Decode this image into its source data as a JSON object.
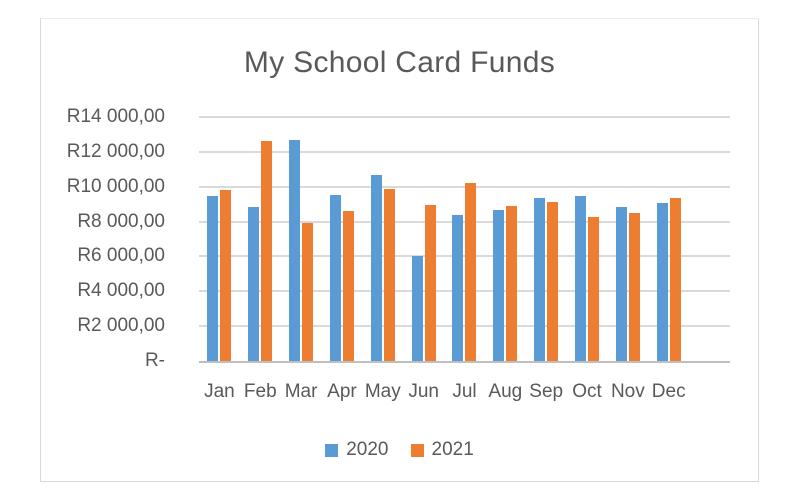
{
  "chart_data": {
    "type": "bar",
    "title": "My School Card Funds",
    "categories": [
      "Jan",
      "Feb",
      "Mar",
      "Apr",
      "May",
      "Jun",
      "Jul",
      "Aug",
      "Sep",
      "Oct",
      "Nov",
      "Dec"
    ],
    "series": [
      {
        "name": "2020",
        "color": "#5B9BD5",
        "values": [
          9450,
          8850,
          12700,
          9550,
          10650,
          6000,
          8400,
          8650,
          9350,
          9450,
          8850,
          9050
        ]
      },
      {
        "name": "2021",
        "color": "#ED7D31",
        "values": [
          9800,
          12650,
          7900,
          8600,
          9850,
          8950,
          10200,
          8900,
          9100,
          8250,
          8500,
          9350
        ]
      }
    ],
    "y_axis": {
      "min": 0,
      "max": 14000,
      "step": 2000,
      "tick_labels": [
        "R-",
        "R2 000,00",
        "R4 000,00",
        "R6 000,00",
        "R8 000,00",
        "R10 000,00",
        "R12 000,00",
        "R14 000,00"
      ]
    },
    "legend_position": "bottom",
    "legend_entries": [
      "2020",
      "2021"
    ],
    "grid": true
  },
  "colors": {
    "series_2020": "#5B9BD5",
    "series_2021": "#ED7D31",
    "text": "#595959",
    "gridline": "#D9D9D9",
    "axis_line": "#BFBFBF",
    "chart_border": "#D9D9D9",
    "background": "#FFFFFF"
  }
}
